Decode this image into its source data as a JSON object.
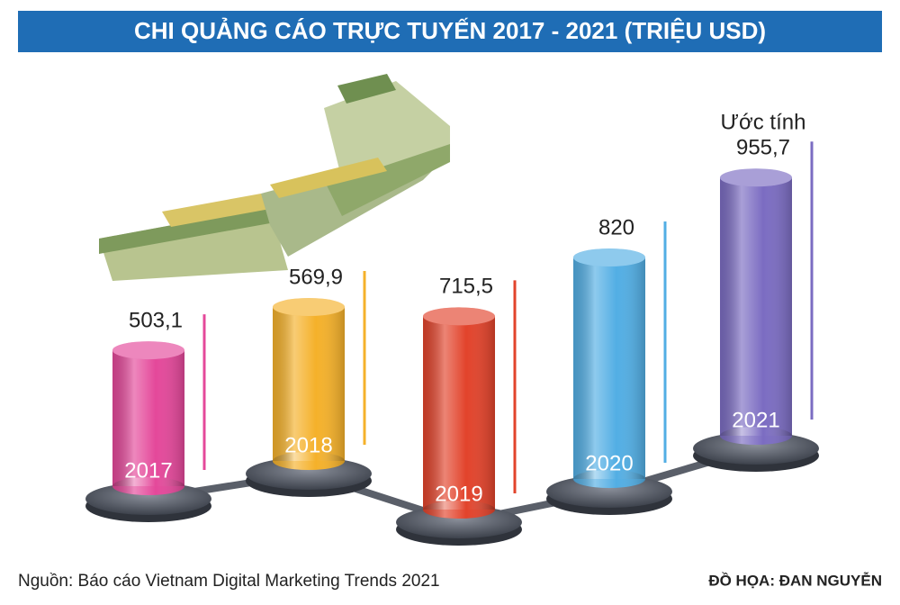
{
  "chart_data": {
    "type": "cylinder-bar",
    "title": "CHI QUẢNG CÁO TRỰC TUYẾN 2017 - 2021 (TRIỆU USD)",
    "categories": [
      "2017",
      "2018",
      "2019",
      "2020",
      "2021"
    ],
    "values": [
      503.1,
      569.9,
      715.5,
      820,
      955.7
    ],
    "value_labels": [
      "503,1",
      "569,9",
      "715,5",
      "820",
      "955,7"
    ],
    "colors": [
      "#e4489a",
      "#f5b12a",
      "#e2432b",
      "#52aee4",
      "#7b6cc2"
    ],
    "annotation": "Ước tính",
    "source": "Nguồn: Báo cáo Vietnam Digital Marketing Trends 2021",
    "credit": "ĐỒ HỌA: ĐAN NGUYỄN"
  }
}
